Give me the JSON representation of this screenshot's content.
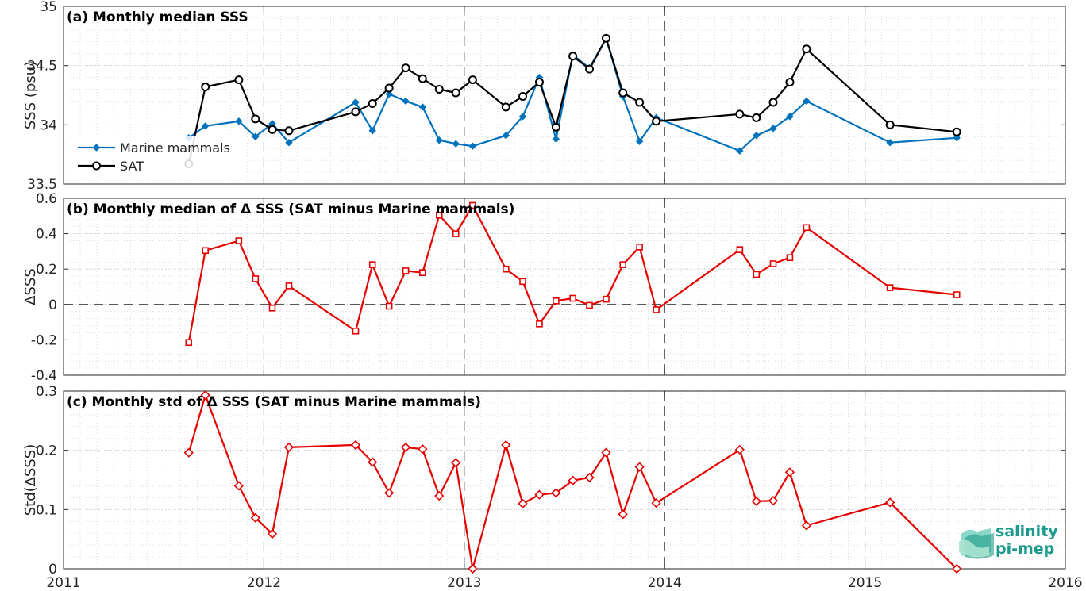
{
  "chart_data": [
    {
      "type": "line",
      "title": "(a) Monthly median SSS",
      "ylabel": "SSS (psu)",
      "xlim": [
        2011,
        2016
      ],
      "ylim": [
        33.5,
        35
      ],
      "yticks": [
        "33.5",
        "34",
        "34.5",
        "35"
      ],
      "grid": true,
      "legend": "top-left (lower part of panel)",
      "series": [
        {
          "name": "Marine mammals",
          "color": "#0072BD",
          "marker": "diamond",
          "x": [
            2011.625,
            2011.708,
            2011.875,
            2011.958,
            2012.042,
            2012.125,
            2012.458,
            2012.542,
            2012.625,
            2012.708,
            2012.792,
            2012.875,
            2012.958,
            2013.042,
            2013.208,
            2013.292,
            2013.375,
            2013.458,
            2013.542,
            2013.625,
            2013.708,
            2013.792,
            2013.875,
            2013.958,
            2014.375,
            2014.458,
            2014.542,
            2014.625,
            2014.708,
            2015.125,
            2015.458
          ],
          "y": [
            33.89,
            33.99,
            34.03,
            33.9,
            34.01,
            33.85,
            34.19,
            33.95,
            34.26,
            34.2,
            34.15,
            33.87,
            33.84,
            33.82,
            33.91,
            34.07,
            34.4,
            33.88,
            34.59,
            34.48,
            34.73,
            34.24,
            33.86,
            34.06,
            33.78,
            33.91,
            33.97,
            34.07,
            34.2,
            33.85,
            33.89
          ]
        },
        {
          "name": "SAT",
          "color": "#000000",
          "marker": "circle",
          "x": [
            2011.625,
            2011.708,
            2011.875,
            2011.958,
            2012.042,
            2012.125,
            2012.458,
            2012.542,
            2012.625,
            2012.708,
            2012.792,
            2012.875,
            2012.958,
            2013.042,
            2013.208,
            2013.292,
            2013.375,
            2013.458,
            2013.542,
            2013.625,
            2013.708,
            2013.792,
            2013.875,
            2013.958,
            2014.375,
            2014.458,
            2014.542,
            2014.625,
            2014.708,
            2015.125,
            2015.458
          ],
          "y": [
            33.67,
            34.32,
            34.38,
            34.05,
            33.96,
            33.95,
            34.11,
            34.18,
            34.31,
            34.48,
            34.39,
            34.3,
            34.27,
            34.38,
            34.15,
            34.24,
            34.36,
            33.98,
            34.58,
            34.47,
            34.73,
            34.27,
            34.19,
            34.03,
            34.09,
            34.06,
            34.19,
            34.36,
            34.64,
            34.0,
            33.94
          ]
        }
      ]
    },
    {
      "type": "line",
      "title": "(b) Monthly median of Δ SSS (SAT minus Marine mammals)",
      "ylabel": "ΔSSS",
      "xlim": [
        2011,
        2016
      ],
      "ylim": [
        -0.4,
        0.6
      ],
      "yticks": [
        "-0.4",
        "-0.2",
        "0",
        "0.2",
        "0.4",
        "0.6"
      ],
      "grid": true,
      "series": [
        {
          "color": "#E60000",
          "marker": "square",
          "x": [
            2011.625,
            2011.708,
            2011.875,
            2011.958,
            2012.042,
            2012.125,
            2012.458,
            2012.542,
            2012.625,
            2012.708,
            2012.792,
            2012.875,
            2012.958,
            2013.042,
            2013.208,
            2013.292,
            2013.375,
            2013.458,
            2013.542,
            2013.625,
            2013.708,
            2013.792,
            2013.875,
            2013.958,
            2014.375,
            2014.458,
            2014.542,
            2014.625,
            2014.708,
            2015.125,
            2015.458
          ],
          "y": [
            -0.215,
            0.305,
            0.36,
            0.145,
            -0.02,
            0.105,
            -0.15,
            0.225,
            -0.01,
            0.19,
            0.18,
            0.505,
            0.4,
            0.56,
            0.2,
            0.13,
            -0.11,
            0.02,
            0.035,
            -0.005,
            0.03,
            0.225,
            0.325,
            -0.03,
            0.31,
            0.17,
            0.23,
            0.265,
            0.435,
            0.095,
            0.055
          ]
        }
      ]
    },
    {
      "type": "line",
      "title": "(c) Monthly std of Δ SSS (SAT minus Marine mammals)",
      "ylabel": "Std(ΔSSS)",
      "xlim": [
        2011,
        2016
      ],
      "ylim": [
        0,
        0.3
      ],
      "yticks": [
        "0",
        "0.1",
        "0.2",
        "0.3"
      ],
      "xticks": [
        "2011",
        "2012",
        "2013",
        "2014",
        "2015",
        "2016"
      ],
      "grid": true,
      "series": [
        {
          "color": "#E60000",
          "marker": "diamond",
          "x": [
            2011.625,
            2011.708,
            2011.875,
            2011.958,
            2012.042,
            2012.125,
            2012.458,
            2012.542,
            2012.625,
            2012.708,
            2012.792,
            2012.875,
            2012.958,
            2013.042,
            2013.208,
            2013.292,
            2013.375,
            2013.458,
            2013.542,
            2013.625,
            2013.708,
            2013.792,
            2013.875,
            2013.958,
            2014.375,
            2014.458,
            2014.542,
            2014.625,
            2014.708,
            2015.125,
            2015.458
          ],
          "y": [
            0.196,
            0.293,
            0.14,
            0.086,
            0.059,
            0.205,
            0.209,
            0.18,
            0.128,
            0.205,
            0.202,
            0.123,
            0.179,
            0.0,
            0.209,
            0.11,
            0.125,
            0.128,
            0.149,
            0.154,
            0.196,
            0.092,
            0.172,
            0.111,
            0.201,
            0.114,
            0.115,
            0.163,
            0.073,
            0.112,
            0.0
          ]
        }
      ]
    }
  ],
  "logo": {
    "line1": "salinity",
    "line2": "pi-mep"
  }
}
